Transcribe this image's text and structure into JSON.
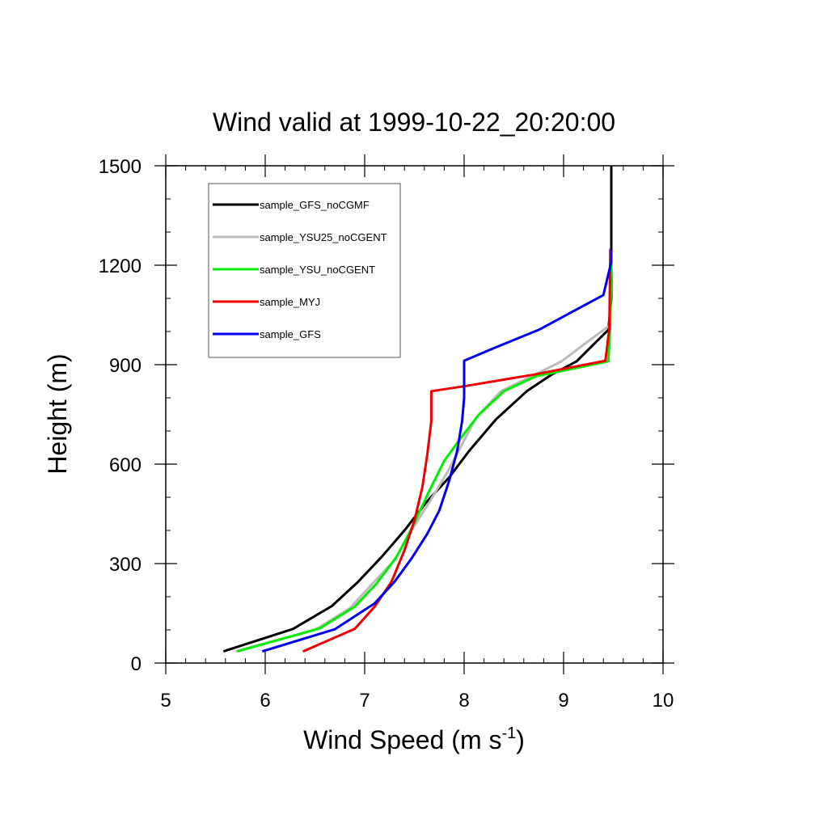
{
  "chart_data": {
    "type": "line",
    "title": "Wind valid at 1999-10-22_20:20:00",
    "xlabel": "Wind Speed (m s",
    "xlabel_sup": "-1",
    "xlabel_suffix": ")",
    "ylabel": "Height (m)",
    "xlim": [
      5,
      10
    ],
    "ylim": [
      0,
      1500
    ],
    "xticks": [
      5,
      6,
      7,
      8,
      9,
      10
    ],
    "yticks": [
      0,
      300,
      600,
      900,
      1200,
      1500
    ],
    "x_minor_step": 0.2,
    "y_minor_step": 100,
    "legend_position": "top-left",
    "grid": false,
    "series": [
      {
        "name": "sample_GFS_noCGMF",
        "color": "#000000",
        "points": [
          [
            5.58,
            35
          ],
          [
            6.28,
            103
          ],
          [
            6.67,
            172
          ],
          [
            6.93,
            244
          ],
          [
            7.17,
            320
          ],
          [
            7.4,
            400
          ],
          [
            7.62,
            485
          ],
          [
            7.85,
            560
          ],
          [
            8.05,
            640
          ],
          [
            8.32,
            735
          ],
          [
            8.63,
            820
          ],
          [
            8.88,
            870
          ],
          [
            9.13,
            910
          ],
          [
            9.45,
            1005
          ],
          [
            9.48,
            1100
          ],
          [
            9.48,
            1250
          ],
          [
            9.48,
            1500
          ]
        ]
      },
      {
        "name": "sample_YSU25_noCGENT",
        "color": "#bbbbbb",
        "points": [
          [
            5.7,
            35
          ],
          [
            6.5,
            100
          ],
          [
            6.85,
            165
          ],
          [
            7.05,
            230
          ],
          [
            7.3,
            310
          ],
          [
            7.47,
            400
          ],
          [
            7.65,
            485
          ],
          [
            7.84,
            580
          ],
          [
            7.98,
            660
          ],
          [
            8.12,
            740
          ],
          [
            8.37,
            820
          ],
          [
            8.68,
            865
          ],
          [
            8.98,
            910
          ],
          [
            9.2,
            960
          ],
          [
            9.47,
            1020
          ],
          [
            9.48,
            1250
          ]
        ]
      },
      {
        "name": "sample_YSU_noCGENT",
        "color": "#00ee00",
        "points": [
          [
            5.72,
            35
          ],
          [
            6.55,
            105
          ],
          [
            6.9,
            170
          ],
          [
            7.12,
            240
          ],
          [
            7.32,
            320
          ],
          [
            7.48,
            410
          ],
          [
            7.65,
            520
          ],
          [
            7.8,
            610
          ],
          [
            7.97,
            680
          ],
          [
            8.15,
            750
          ],
          [
            8.4,
            820
          ],
          [
            8.72,
            865
          ],
          [
            9.45,
            910
          ],
          [
            9.47,
            1020
          ],
          [
            9.48,
            1250
          ]
        ]
      },
      {
        "name": "sample_MYJ",
        "color": "#ee0000",
        "points": [
          [
            6.38,
            35
          ],
          [
            6.9,
            103
          ],
          [
            7.1,
            170
          ],
          [
            7.27,
            245
          ],
          [
            7.4,
            340
          ],
          [
            7.5,
            430
          ],
          [
            7.58,
            530
          ],
          [
            7.63,
            630
          ],
          [
            7.67,
            730
          ],
          [
            7.67,
            820
          ],
          [
            8.0,
            835
          ],
          [
            8.7,
            870
          ],
          [
            9.42,
            912
          ],
          [
            9.46,
            1010
          ],
          [
            9.47,
            1250
          ]
        ]
      },
      {
        "name": "sample_GFS",
        "color": "#0000ee",
        "points": [
          [
            5.97,
            35
          ],
          [
            6.7,
            102
          ],
          [
            7.1,
            180
          ],
          [
            7.3,
            245
          ],
          [
            7.47,
            315
          ],
          [
            7.63,
            390
          ],
          [
            7.75,
            460
          ],
          [
            7.85,
            550
          ],
          [
            7.93,
            640
          ],
          [
            7.98,
            730
          ],
          [
            8.0,
            800
          ],
          [
            8.0,
            912
          ],
          [
            8.3,
            950
          ],
          [
            8.75,
            1005
          ],
          [
            9.4,
            1110
          ],
          [
            9.48,
            1210
          ],
          [
            9.48,
            1250
          ]
        ]
      }
    ]
  }
}
